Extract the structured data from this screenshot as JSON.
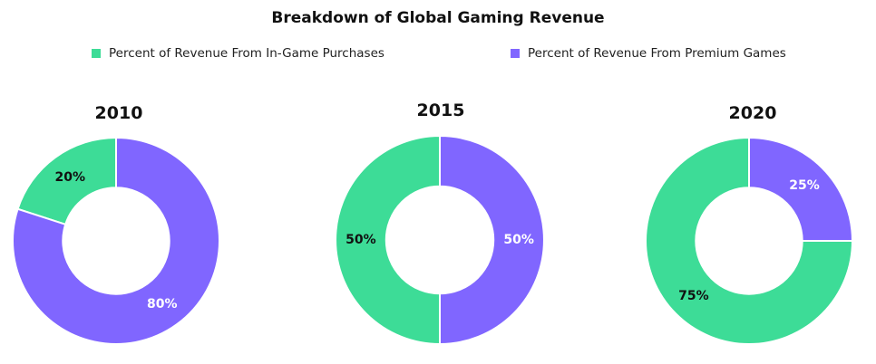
{
  "chart_data": {
    "type": "pie",
    "title": "Breakdown of Global Gaming Revenue",
    "legend": [
      {
        "name": "Percent of Revenue From In-Game Purchases",
        "color": "#3ddc97"
      },
      {
        "name": "Percent of Revenue From Premium Games",
        "color": "#8066ff"
      }
    ],
    "legend_position": "top",
    "charts": [
      {
        "label": "2010",
        "values": [
          20,
          80
        ],
        "labels": [
          "20%",
          "80%"
        ]
      },
      {
        "label": "2015",
        "values": [
          50,
          50
        ],
        "labels": [
          "50%",
          "50%"
        ]
      },
      {
        "label": "2020",
        "values": [
          75,
          25
        ],
        "labels": [
          "75%",
          "25%"
        ]
      }
    ]
  }
}
